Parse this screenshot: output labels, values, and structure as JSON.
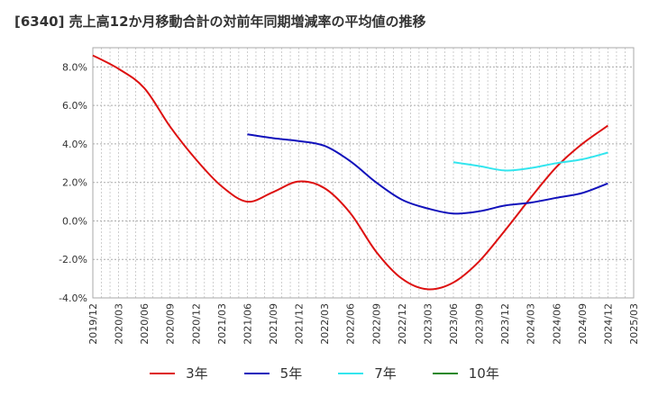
{
  "chart_data": {
    "type": "line",
    "title": "[6340]  売上高12か月移動合計の対前年同期増減率の平均値の推移",
    "xlabel": "",
    "ylabel": "",
    "ylim": [
      -4.0,
      9.0
    ],
    "yticks": [
      -4.0,
      -2.0,
      0.0,
      2.0,
      4.0,
      6.0,
      8.0
    ],
    "ytick_labels": [
      "-4.0%",
      "-2.0%",
      "0.0%",
      "2.0%",
      "4.0%",
      "6.0%",
      "8.0%"
    ],
    "x_range": [
      "2019/12",
      "2025/03"
    ],
    "xtick_labels": [
      "2019/12",
      "2020/03",
      "2020/06",
      "2020/09",
      "2020/12",
      "2021/03",
      "2021/06",
      "2021/09",
      "2021/12",
      "2022/03",
      "2022/06",
      "2022/09",
      "2022/12",
      "2023/03",
      "2023/06",
      "2023/09",
      "2023/12",
      "2024/03",
      "2024/06",
      "2024/09",
      "2024/12",
      "2025/03"
    ],
    "grid": true,
    "legend_position": "bottom",
    "series": [
      {
        "name": "3年",
        "color": "#dd1111",
        "points": [
          [
            "2019/12",
            8.6
          ],
          [
            "2020/03",
            7.9
          ],
          [
            "2020/06",
            6.9
          ],
          [
            "2020/09",
            4.9
          ],
          [
            "2020/12",
            3.2
          ],
          [
            "2021/03",
            1.8
          ],
          [
            "2021/06",
            1.0
          ],
          [
            "2021/09",
            1.5
          ],
          [
            "2021/12",
            2.05
          ],
          [
            "2022/03",
            1.7
          ],
          [
            "2022/06",
            0.4
          ],
          [
            "2022/09",
            -1.6
          ],
          [
            "2022/12",
            -3.0
          ],
          [
            "2023/03",
            -3.55
          ],
          [
            "2023/06",
            -3.2
          ],
          [
            "2023/09",
            -2.1
          ],
          [
            "2023/12",
            -0.5
          ],
          [
            "2024/03",
            1.2
          ],
          [
            "2024/06",
            2.8
          ],
          [
            "2024/09",
            4.0
          ],
          [
            "2024/12",
            4.95
          ]
        ]
      },
      {
        "name": "5年",
        "color": "#1111bb",
        "points": [
          [
            "2021/06",
            4.5
          ],
          [
            "2021/09",
            4.3
          ],
          [
            "2021/12",
            4.15
          ],
          [
            "2022/03",
            3.9
          ],
          [
            "2022/06",
            3.1
          ],
          [
            "2022/09",
            2.0
          ],
          [
            "2022/12",
            1.1
          ],
          [
            "2023/03",
            0.65
          ],
          [
            "2023/06",
            0.38
          ],
          [
            "2023/09",
            0.5
          ],
          [
            "2023/12",
            0.8
          ],
          [
            "2024/03",
            0.95
          ],
          [
            "2024/06",
            1.2
          ],
          [
            "2024/09",
            1.45
          ],
          [
            "2024/12",
            1.95
          ]
        ]
      },
      {
        "name": "7年",
        "color": "#33e5ee",
        "points": [
          [
            "2023/06",
            3.05
          ],
          [
            "2023/09",
            2.85
          ],
          [
            "2023/12",
            2.62
          ],
          [
            "2024/03",
            2.75
          ],
          [
            "2024/06",
            3.0
          ],
          [
            "2024/09",
            3.2
          ],
          [
            "2024/12",
            3.55
          ]
        ]
      },
      {
        "name": "10年",
        "color": "#228822",
        "points": []
      }
    ]
  }
}
